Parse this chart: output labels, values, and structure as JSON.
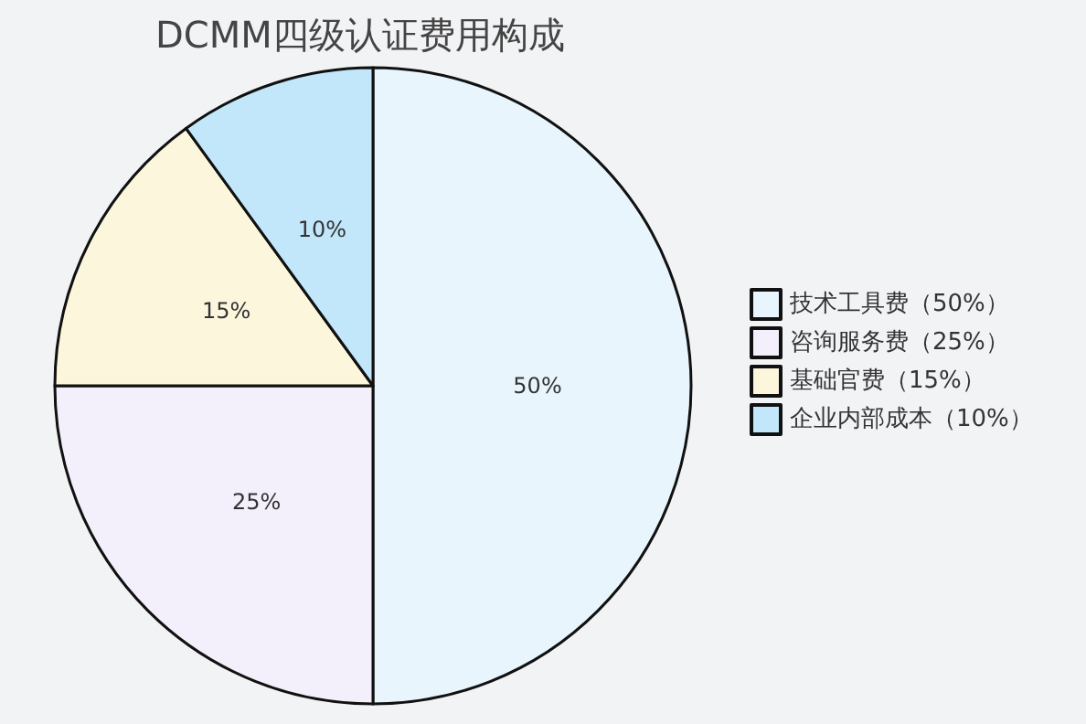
{
  "chart_data": {
    "type": "pie",
    "title": "DCMM四级认证费用构成",
    "categories": [
      "技术工具费（50%）",
      "咨询服务费（25%）",
      "基础官费（15%）",
      "企业内部成本（10%）"
    ],
    "values": [
      50,
      25,
      15,
      10
    ],
    "colors": [
      "#e8f5fd",
      "#f3effb",
      "#fbf6dc",
      "#c2e7fb"
    ],
    "value_labels": [
      "50%",
      "25%",
      "15%",
      "10%"
    ],
    "legend": "right"
  }
}
